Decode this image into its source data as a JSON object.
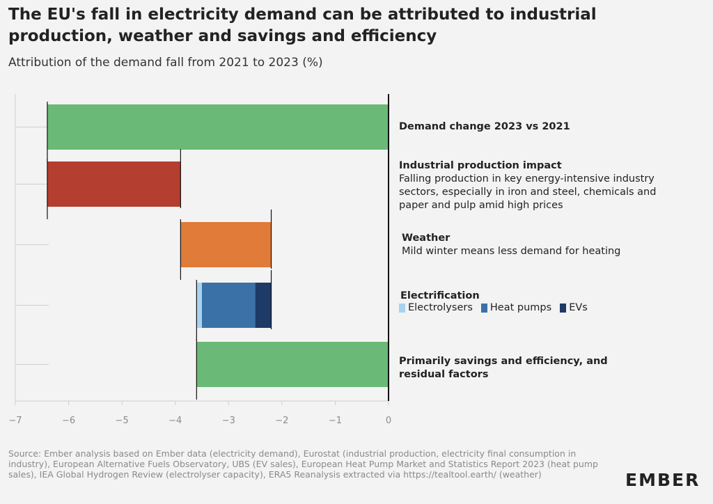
{
  "title": "The EU's fall in electricity demand can be attributed to industrial production, weather and savings and efficiency",
  "subtitle": "Attribution of the demand fall from 2021 to 2023 (%)",
  "labels": {
    "demand_change": {
      "head": "Demand change 2023 vs 2021"
    },
    "industrial": {
      "head": "Industrial production impact",
      "desc": "Falling production in key energy-intensive industry sectors, especially in iron and steel, chemicals and paper and pulp amid high prices"
    },
    "weather": {
      "head": "Weather",
      "desc": "Mild winter means less demand for heating"
    },
    "electrification": {
      "head": "Electrification"
    },
    "savings": {
      "head": "Primarily savings and efficiency, and residual factors"
    }
  },
  "legend": [
    {
      "name": "Electrolysers",
      "color": "#a8d3f0"
    },
    {
      "name": "Heat pumps",
      "color": "#3a72a8"
    },
    {
      "name": "EVs",
      "color": "#1e3a66"
    }
  ],
  "source": "Source: Ember analysis based on Ember data (electricity demand), Eurostat (industrial production, electricity final consumption in industry), European Alternative Fuels Observatory, UBS (EV sales), European Heat Pump Market and Statistics Report 2023 (heat pump sales), IEA Global Hydrogen Review (electrolyser capacity), ERA5 Reanalysis extracted via https://tealtool.earth/ (weather)",
  "logo": "EMBER",
  "chart_data": {
    "type": "bar",
    "orientation": "horizontal-waterfall",
    "xlim": [
      -7,
      0
    ],
    "xticks": [
      "−7",
      "−6",
      "−5",
      "−4",
      "−3",
      "−2",
      "−1",
      "0"
    ],
    "xtick_values": [
      -7,
      -6,
      -5,
      -4,
      -3,
      -2,
      -1,
      0
    ],
    "bars": [
      {
        "category": "Demand change 2023 vs 2021",
        "segments": [
          {
            "start": -6.4,
            "end": 0,
            "color": "#6ab976"
          }
        ]
      },
      {
        "category": "Industrial production impact",
        "segments": [
          {
            "start": -6.4,
            "end": -3.9,
            "color": "#b43e2f"
          }
        ]
      },
      {
        "category": "Weather",
        "segments": [
          {
            "start": -3.9,
            "end": -2.2,
            "color": "#e07b39"
          }
        ]
      },
      {
        "category": "Electrification",
        "segments": [
          {
            "series": "Electrolysers",
            "start": -3.6,
            "end": -3.5,
            "color": "#a8d3f0"
          },
          {
            "series": "Heat pumps",
            "start": -3.5,
            "end": -2.5,
            "color": "#3a72a8"
          },
          {
            "series": "EVs",
            "start": -2.5,
            "end": -2.2,
            "color": "#1e3a66"
          }
        ]
      },
      {
        "category": "Primarily savings and efficiency, and residual factors",
        "segments": [
          {
            "start": -3.6,
            "end": 0,
            "color": "#6ab976"
          }
        ]
      }
    ],
    "grid": false
  }
}
